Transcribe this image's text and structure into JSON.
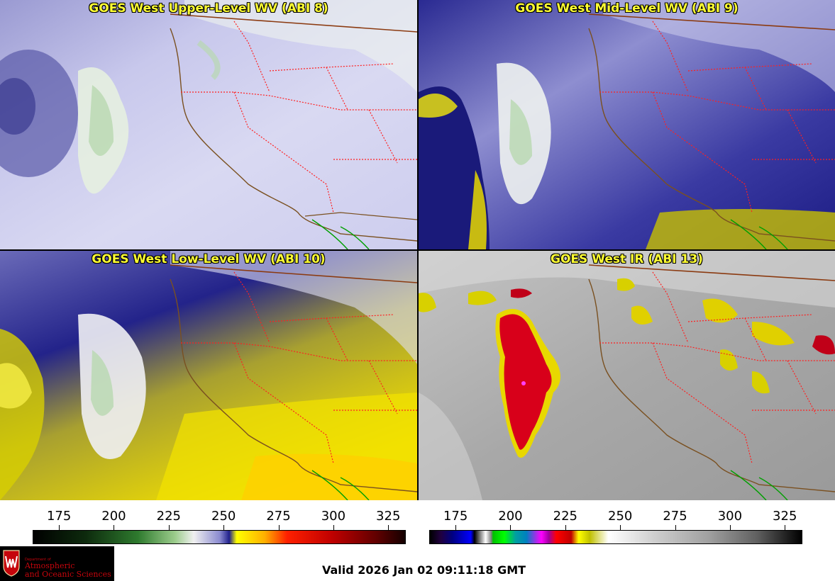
{
  "panels": [
    {
      "title": "GOES West Upper-Level WV (ABI 8)"
    },
    {
      "title": "GOES West Mid-Level WV (ABI 9)"
    },
    {
      "title": "GOES West Low-Level WV (ABI 10)"
    },
    {
      "title": "GOES West IR (ABI 13)"
    }
  ],
  "colorbar_wv": {
    "ticks": [
      "175",
      "200",
      "225",
      "250",
      "275",
      "300",
      "325"
    ],
    "tick_values": [
      175,
      200,
      225,
      250,
      275,
      300,
      325
    ],
    "range": [
      163,
      333
    ]
  },
  "colorbar_ir": {
    "ticks": [
      "175",
      "200",
      "225",
      "250",
      "275",
      "300",
      "325"
    ],
    "tick_values": [
      175,
      200,
      225,
      250,
      275,
      300,
      325
    ],
    "range": [
      163,
      333
    ]
  },
  "logo": {
    "small": "Department of",
    "line1": "Atmospheric",
    "line2": "and Oceanic Sciences"
  },
  "valid_time": "Valid 2026 Jan 02 09:11:18 GMT",
  "colors": {
    "title_text": "#ffff33",
    "state_borders": "#ff2020",
    "coastline": "#8b5a2b",
    "mexico_coast": "#00a000"
  }
}
